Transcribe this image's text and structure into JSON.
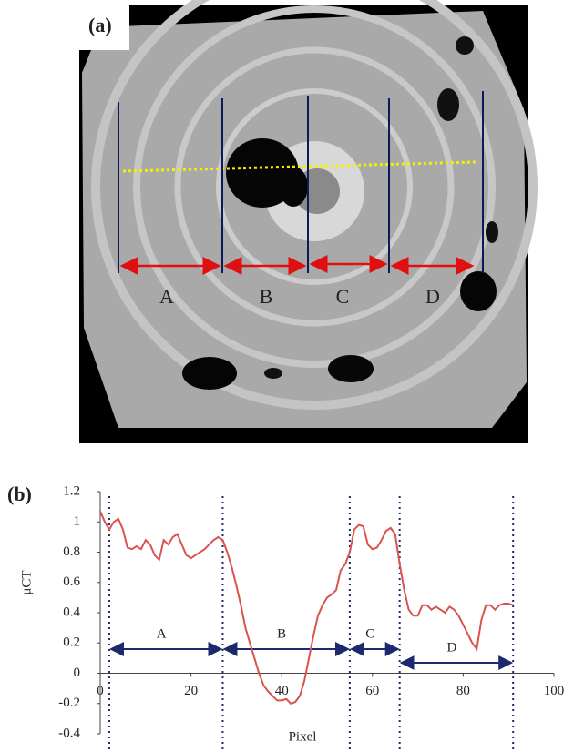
{
  "panel_a": {
    "label": "(a)",
    "regions": [
      "A",
      "B",
      "C",
      "D"
    ]
  },
  "chart_data": {
    "type": "line",
    "label": "(b)",
    "xlabel": "Pixel",
    "ylabel": "μCT",
    "xlim": [
      0,
      100
    ],
    "xticks": [
      0,
      20,
      40,
      60,
      80,
      100
    ],
    "ylim": [
      -0.4,
      1.2
    ],
    "yticks": [
      -0.4,
      -0.2,
      0,
      0.2,
      0.4,
      0.6,
      0.8,
      1,
      1.2
    ],
    "boundaries": [
      2,
      27,
      55,
      66,
      91
    ],
    "regions": [
      "A",
      "B",
      "C",
      "D"
    ],
    "series": [
      {
        "color": "#d9534f",
        "x": [
          0,
          1,
          2,
          3,
          4,
          5,
          6,
          7,
          8,
          9,
          10,
          11,
          12,
          13,
          14,
          15,
          16,
          17,
          18,
          19,
          20,
          21,
          22,
          23,
          24,
          25,
          26,
          27,
          28,
          29,
          30,
          31,
          32,
          33,
          34,
          35,
          36,
          37,
          38,
          39,
          40,
          41,
          42,
          43,
          44,
          45,
          46,
          47,
          48,
          49,
          50,
          51,
          52,
          53,
          54,
          55,
          56,
          57,
          58,
          59,
          60,
          61,
          62,
          63,
          64,
          65,
          66,
          67,
          68,
          69,
          70,
          71,
          72,
          73,
          74,
          75,
          76,
          77,
          78,
          79,
          80,
          81,
          82,
          83,
          84,
          85,
          86,
          87,
          88,
          89,
          90,
          91
        ],
        "values": [
          1.07,
          1.0,
          0.95,
          1.0,
          1.02,
          0.95,
          0.83,
          0.82,
          0.84,
          0.82,
          0.88,
          0.85,
          0.78,
          0.75,
          0.88,
          0.85,
          0.9,
          0.92,
          0.85,
          0.78,
          0.76,
          0.78,
          0.8,
          0.82,
          0.85,
          0.88,
          0.9,
          0.88,
          0.8,
          0.7,
          0.58,
          0.45,
          0.3,
          0.2,
          0.1,
          0.0,
          -0.08,
          -0.12,
          -0.15,
          -0.18,
          -0.18,
          -0.17,
          -0.2,
          -0.19,
          -0.15,
          -0.05,
          0.1,
          0.25,
          0.38,
          0.45,
          0.5,
          0.52,
          0.55,
          0.68,
          0.72,
          0.8,
          0.95,
          0.98,
          0.97,
          0.85,
          0.82,
          0.83,
          0.88,
          0.94,
          0.96,
          0.92,
          0.72,
          0.55,
          0.42,
          0.38,
          0.38,
          0.45,
          0.45,
          0.42,
          0.44,
          0.42,
          0.4,
          0.44,
          0.42,
          0.38,
          0.32,
          0.26,
          0.2,
          0.16,
          0.35,
          0.45,
          0.45,
          0.42,
          0.45,
          0.46,
          0.46,
          0.45
        ]
      }
    ]
  }
}
